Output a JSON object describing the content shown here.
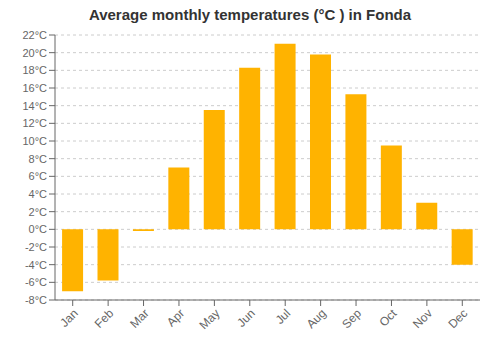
{
  "chart_data": {
    "type": "bar",
    "title": "Average monthly temperatures (°C ) in Fonda",
    "categories": [
      "Jan",
      "Feb",
      "Mar",
      "Apr",
      "May",
      "Jun",
      "Jul",
      "Aug",
      "Sep",
      "Oct",
      "Nov",
      "Dec"
    ],
    "values": [
      -7.0,
      -5.8,
      -0.2,
      7.0,
      13.5,
      18.3,
      21.0,
      19.8,
      15.3,
      9.5,
      3.0,
      -4.0
    ],
    "color": "#FFB300",
    "ylim": [
      -8,
      22
    ],
    "yticks": [
      {
        "value": -8,
        "label": "-8°C"
      },
      {
        "value": -6,
        "label": "-6°C"
      },
      {
        "value": -4,
        "label": "-4°C"
      },
      {
        "value": -2,
        "label": "-2°C"
      },
      {
        "value": 0,
        "label": "0°C"
      },
      {
        "value": 2,
        "label": "2°C"
      },
      {
        "value": 4,
        "label": "4°C"
      },
      {
        "value": 6,
        "label": "6°C"
      },
      {
        "value": 8,
        "label": "8°C"
      },
      {
        "value": 10,
        "label": "10°C"
      },
      {
        "value": 12,
        "label": "12°C"
      },
      {
        "value": 14,
        "label": "14°C"
      },
      {
        "value": 16,
        "label": "16°C"
      },
      {
        "value": 18,
        "label": "18°C"
      },
      {
        "value": 20,
        "label": "20°C"
      },
      {
        "value": 22,
        "label": "22°C"
      }
    ],
    "grid": true
  }
}
